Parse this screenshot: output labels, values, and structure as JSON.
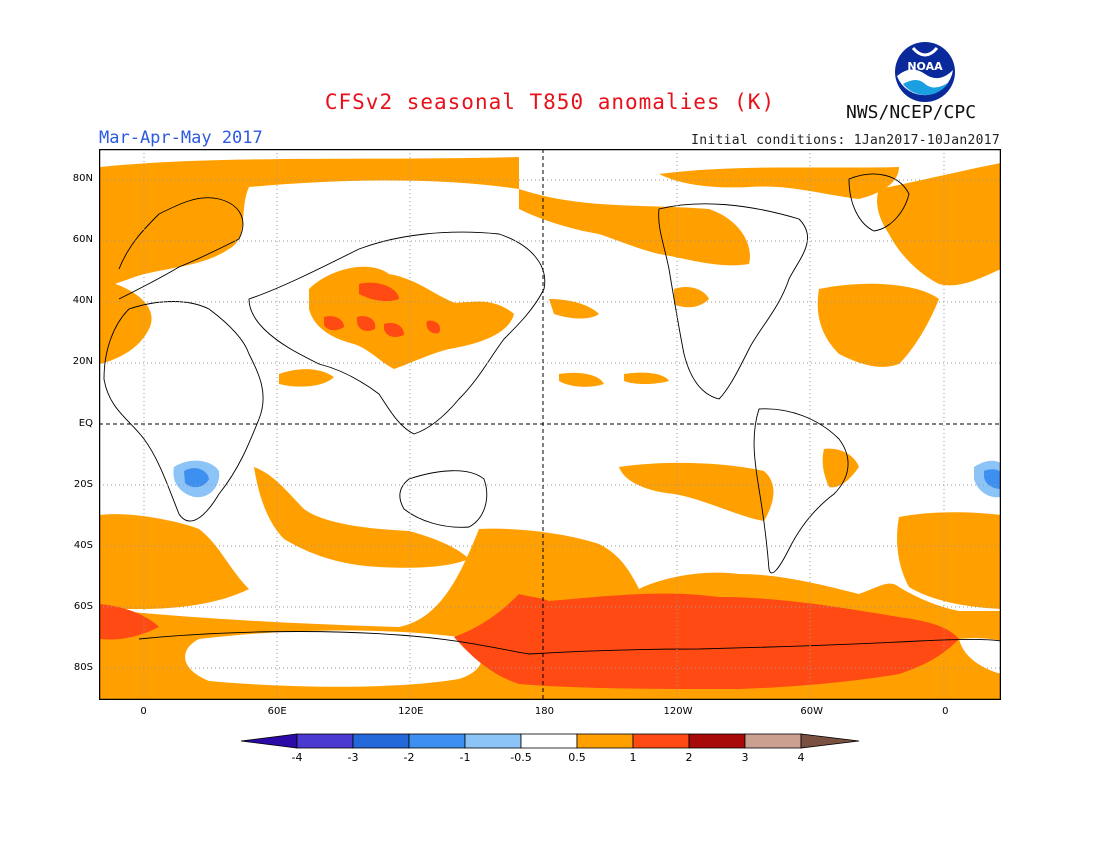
{
  "header": {
    "title": "CFSv2 seasonal T850 anomalies (K)",
    "agency": "NWS/NCEP/CPC",
    "season": "Mar-Apr-May 2017",
    "initial_conditions": "Initial conditions: 1Jan2017-10Jan2017",
    "logo_text": "NOAA"
  },
  "map": {
    "lat_labels": [
      "80N",
      "60N",
      "40N",
      "20N",
      "EQ",
      "20S",
      "40S",
      "60S",
      "80S"
    ],
    "lon_labels": [
      "0",
      "60E",
      "120E",
      "180",
      "120W",
      "60W",
      "0"
    ],
    "lat_range": [
      -90,
      90
    ],
    "lon_range": [
      -20,
      385
    ],
    "grid": "dotted",
    "reference_lines": [
      "EQ",
      "180"
    ]
  },
  "legend": {
    "tick_labels": [
      "-4",
      "-3",
      "-2",
      "-1",
      "-0.5",
      "0.5",
      "1",
      "2",
      "3",
      "4"
    ],
    "colors": [
      "#2b0aa8",
      "#4a3ad0",
      "#2368d8",
      "#3d8ff0",
      "#8cc4f8",
      "#ffffff",
      "#ffa000",
      "#ff4a14",
      "#a80a0a",
      "#caa090",
      "#7a5040"
    ]
  },
  "colors": {
    "land_outline": "#000000",
    "warm_1": "#ffa000",
    "warm_2": "#ff4a14",
    "cool_1": "#3d8ff0",
    "cool_2": "#8cc4f8"
  }
}
